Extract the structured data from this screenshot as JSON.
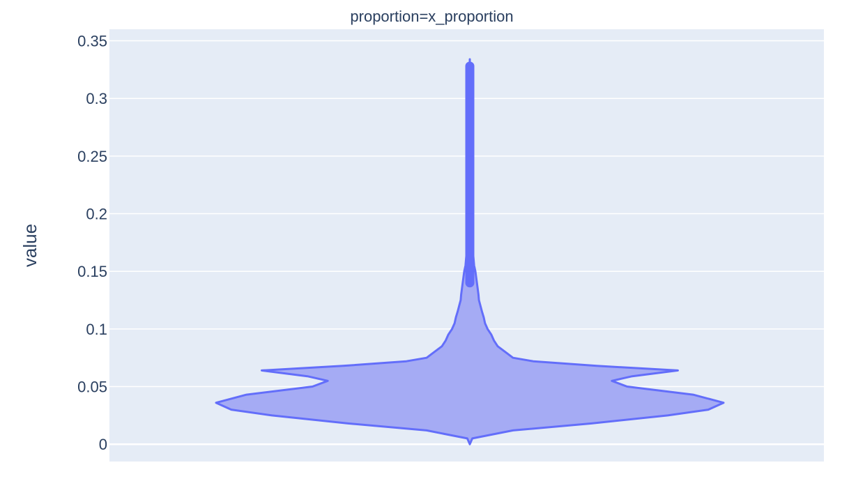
{
  "chart_data": {
    "type": "violin",
    "title": "proportion=x_proportion",
    "xlabel": "",
    "ylabel": "value",
    "ylim": [
      -0.015,
      0.36
    ],
    "yticks": [
      0,
      0.05,
      0.1,
      0.15,
      0.2,
      0.25,
      0.3,
      0.35
    ],
    "ytick_labels": [
      "0",
      "0.05",
      "0.1",
      "0.15",
      "0.2",
      "0.25",
      "0.3",
      "0.35"
    ],
    "grid": true,
    "series": [
      {
        "values_range": [
          0,
          0.334
        ],
        "outlier_range": [
          0.14,
          0.328
        ],
        "density_profile": [
          [
            0.0,
            0.0
          ],
          [
            0.005,
            0.01
          ],
          [
            0.012,
            0.17
          ],
          [
            0.018,
            0.48
          ],
          [
            0.025,
            0.78
          ],
          [
            0.03,
            0.94
          ],
          [
            0.036,
            1.0
          ],
          [
            0.043,
            0.88
          ],
          [
            0.05,
            0.62
          ],
          [
            0.055,
            0.56
          ],
          [
            0.059,
            0.64
          ],
          [
            0.064,
            0.82
          ],
          [
            0.068,
            0.5
          ],
          [
            0.072,
            0.25
          ],
          [
            0.075,
            0.17
          ],
          [
            0.08,
            0.14
          ],
          [
            0.085,
            0.11
          ],
          [
            0.09,
            0.095
          ],
          [
            0.095,
            0.085
          ],
          [
            0.1,
            0.07
          ],
          [
            0.105,
            0.06
          ],
          [
            0.11,
            0.055
          ],
          [
            0.115,
            0.048
          ],
          [
            0.12,
            0.042
          ],
          [
            0.125,
            0.036
          ],
          [
            0.13,
            0.034
          ],
          [
            0.14,
            0.028
          ],
          [
            0.15,
            0.022
          ],
          [
            0.155,
            0.017
          ],
          [
            0.16,
            0.015
          ],
          [
            0.17,
            0.011
          ],
          [
            0.18,
            0.008
          ],
          [
            0.19,
            0.005
          ],
          [
            0.2,
            0.003
          ],
          [
            0.22,
            0.0015
          ],
          [
            0.26,
            0.0008
          ],
          [
            0.3,
            0.0006
          ],
          [
            0.334,
            0.0
          ]
        ]
      }
    ],
    "colors": {
      "fill": "#a5abf4",
      "line": "#636efa",
      "plot_bg": "#e5ecf6",
      "grid": "#ffffff",
      "text": "#2a3f5f"
    }
  }
}
